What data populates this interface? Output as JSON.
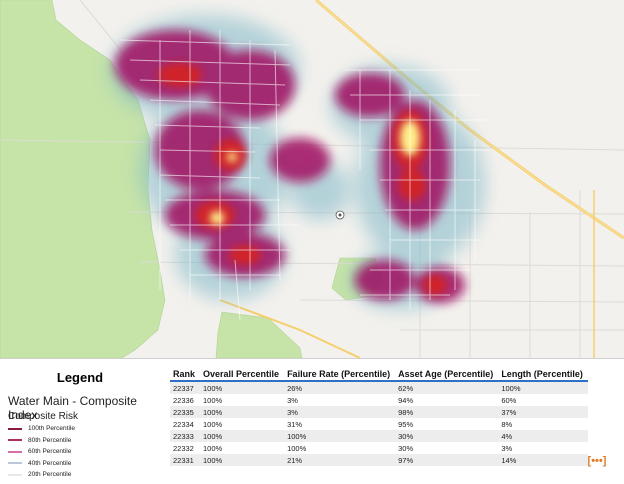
{
  "legend": {
    "title": "Legend",
    "layer_name": "Water Main - Composite Index",
    "group_label": "Composite Risk",
    "items": [
      {
        "label": "100th Percentile",
        "color": "#8b1a3a"
      },
      {
        "label": "80th Percentile",
        "color": "#b0305a"
      },
      {
        "label": "60th Percentile",
        "color": "#d870a8"
      },
      {
        "label": "40th Percentile",
        "color": "#bcc6d8"
      },
      {
        "label": "20th Percentile",
        "color": "#e8e8ea"
      }
    ]
  },
  "table": {
    "headers": [
      "Rank",
      "Overall Percentile",
      "Failure Rate (Percentile)",
      "Asset Age (Percentile)",
      "Length (Percentile)"
    ],
    "rows": [
      [
        "22337",
        "100%",
        "26%",
        "62%",
        "100%"
      ],
      [
        "22336",
        "100%",
        "3%",
        "94%",
        "60%"
      ],
      [
        "22335",
        "100%",
        "3%",
        "98%",
        "37%"
      ],
      [
        "22334",
        "100%",
        "31%",
        "95%",
        "8%"
      ],
      [
        "22333",
        "100%",
        "100%",
        "30%",
        "4%"
      ],
      [
        "22332",
        "100%",
        "100%",
        "30%",
        "3%"
      ],
      [
        "22331",
        "100%",
        "21%",
        "97%",
        "14%"
      ]
    ]
  },
  "more_button": "[•••]",
  "colors": {
    "park": "#c6e3a8",
    "highway": "#f5cf6e",
    "heat_core": "#fff08a",
    "heat_mid": "#d8201e",
    "heat_outer": "#a01060",
    "heat_halo": "#7fb8c8",
    "table_rule": "#2f6fc7",
    "more_icon": "#e07b2a"
  }
}
